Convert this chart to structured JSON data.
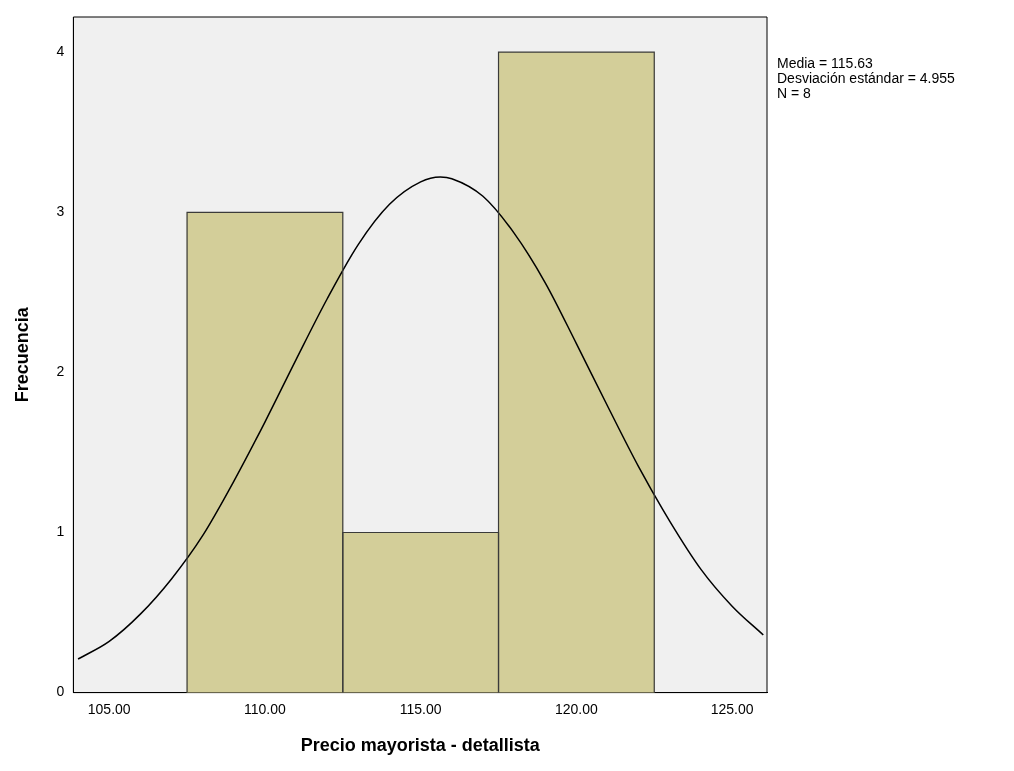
{
  "chart_data": {
    "type": "histogram",
    "xlabel": "Precio mayorista - detallista",
    "ylabel": "Frecuencia",
    "bins": [
      107.5,
      112.5,
      117.5,
      122.5
    ],
    "values": [
      3,
      1,
      4
    ],
    "color": "#d3ce99",
    "series": [
      {
        "type": "line",
        "color": "#000000",
        "x": [
          104,
          105,
          106,
          107,
          108,
          109,
          110,
          111,
          112,
          113,
          114,
          115,
          115.63,
          116,
          117,
          118,
          119,
          120,
          121,
          122,
          123,
          124,
          125,
          126
        ],
        "values": [
          0.21,
          0.32,
          0.49,
          0.71,
          0.98,
          1.32,
          1.69,
          2.08,
          2.46,
          2.8,
          3.05,
          3.19,
          3.22,
          3.21,
          3.1,
          2.87,
          2.56,
          2.18,
          1.79,
          1.41,
          1.07,
          0.77,
          0.54,
          0.36
        ]
      }
    ],
    "marker": "none",
    "grid": false,
    "xlim": [
      103.85,
      126.12
    ],
    "xticks": [
      {
        "value": 105,
        "label": "105.00"
      },
      {
        "value": 110,
        "label": "110.00"
      },
      {
        "value": 115,
        "label": "115.00"
      },
      {
        "value": 120,
        "label": "120.00"
      },
      {
        "value": 125,
        "label": "125.00"
      }
    ],
    "ylim": [
      0,
      4.22
    ],
    "yticks": [
      0,
      1,
      2,
      3,
      4
    ],
    "annotations": [
      "Media = 115.63",
      "Desviación estándar = 4.955",
      "N = 8"
    ]
  }
}
